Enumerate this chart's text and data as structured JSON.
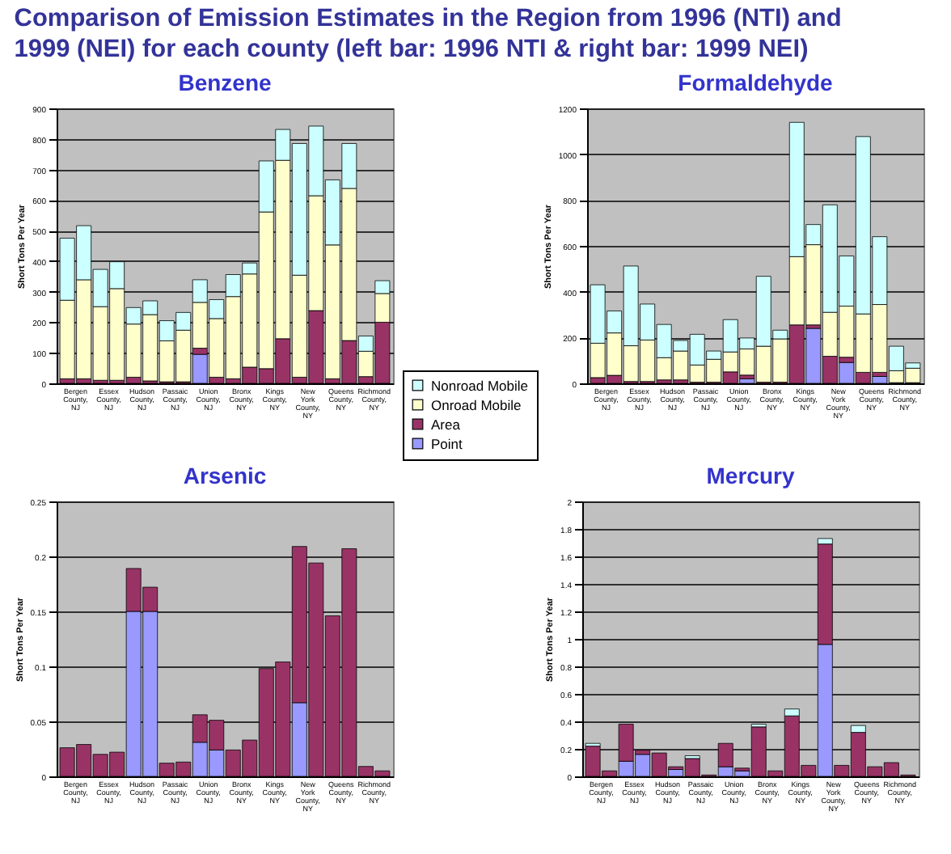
{
  "chart_data": [
    {
      "type": "bar",
      "stacked": true,
      "title": "Benzene",
      "ylabel": "Short Tons Per Year",
      "annotations": [
        "Comparison of Emission Estimates in the Region from 1996 (NTI) and 1999 (NEI) for each county (left bar: 1996 NTI  & right bar: 1999 NEI)"
      ],
      "legend": "bottom right",
      "grid": "y",
      "categories": [
        "Bergen County, NJ",
        null,
        "Essex County, NJ",
        null,
        "Hudson County, NJ",
        null,
        "Passaic County, NJ",
        null,
        "Union County, NJ",
        null,
        "Bronx County, NY",
        null,
        "Kings County, NY",
        null,
        "New York County, NY",
        null,
        "Queens County, NY",
        null,
        "Richmond County, NY",
        null
      ],
      "ylim": [
        0,
        900
      ],
      "yticks": [
        0,
        100,
        200,
        300,
        400,
        500,
        600,
        700,
        800,
        900
      ],
      "series": [
        {
          "name": "Point",
          "color": "#9999ff",
          "values": [
            null,
            null,
            null,
            null,
            null,
            null,
            null,
            null,
            95,
            null,
            null,
            null,
            null,
            null,
            null,
            null,
            null,
            null,
            null,
            null
          ]
        },
        {
          "name": "Area",
          "color": "#993366",
          "values": [
            15,
            15,
            10,
            10,
            20,
            8,
            5,
            5,
            20,
            20,
            15,
            53,
            48,
            146,
            20,
            238,
            15,
            140,
            22,
            200
          ]
        },
        {
          "name": "Onroad Mobile",
          "color": "#ffffcc",
          "values": [
            257,
            324,
            241,
            300,
            174,
            217,
            134,
            169,
            150,
            192,
            269,
            305,
            513,
            584,
            334,
            376,
            438,
            498,
            83,
            94
          ]
        },
        {
          "name": "Nonroad Mobile",
          "color": "#ccffff",
          "values": [
            203,
            177,
            122,
            88,
            54,
            45,
            66,
            58,
            74,
            62,
            72,
            36,
            167,
            101,
            431,
            228,
            213,
            147,
            50,
            42
          ]
        }
      ]
    },
    {
      "type": "bar",
      "stacked": true,
      "title": "Formaldehyde",
      "ylabel": "Short Tons Per Year",
      "grid": "y",
      "categories": [
        "Bergen County, NJ",
        null,
        "Essex County, NJ",
        null,
        "Hudson County, NJ",
        null,
        "Passaic County, NJ",
        null,
        "Union County, NJ",
        null,
        "Bronx County, NY",
        null,
        "Kings County, NY",
        null,
        "New York County, NY",
        null,
        "Queens County, NY",
        null,
        "Richmond County, NY",
        null
      ],
      "ylim": [
        0,
        1200
      ],
      "yticks": [
        0,
        200,
        400,
        600,
        800,
        1000,
        1200
      ],
      "series": [
        {
          "color": "#9999ff",
          "values": [
            null,
            null,
            null,
            null,
            null,
            null,
            null,
            null,
            null,
            20,
            null,
            null,
            null,
            240,
            null,
            91,
            null,
            30,
            null,
            null
          ]
        },
        {
          "color": "#993366",
          "values": [
            25,
            35,
            8,
            8,
            15,
            15,
            5,
            5,
            50,
            16,
            5,
            5,
            255,
            15,
            118,
            23,
            48,
            18,
            3,
            3
          ]
        },
        {
          "color": "#ffffcc",
          "values": [
            150,
            185,
            156,
            181,
            97,
            126,
            75,
            100,
            87,
            114,
            157,
            189,
            298,
            350,
            192,
            223,
            255,
            296,
            52,
            63
          ]
        },
        {
          "color": "#ccffff",
          "values": [
            255,
            96,
            348,
            157,
            145,
            46,
            134,
            36,
            141,
            48,
            305,
            38,
            586,
            88,
            469,
            219,
            774,
            296,
            107,
            23
          ]
        }
      ]
    },
    {
      "type": "bar",
      "stacked": true,
      "title": "Arsenic",
      "ylabel": "Short Tons Per Year",
      "grid": "y",
      "categories": [
        "Bergen County, NJ",
        null,
        "Essex County, NJ",
        null,
        "Hudson County, NJ",
        null,
        "Passaic County, NJ",
        null,
        "Union County, NJ",
        null,
        "Bronx County, NY",
        null,
        "Kings County, NY",
        null,
        "New York County, NY",
        null,
        "Queens County, NY",
        null,
        "Richmond County, NY",
        null
      ],
      "ylim": [
        0,
        0.25
      ],
      "yticks": [
        0,
        0.05,
        0.1,
        0.15,
        0.2,
        0.25
      ],
      "series": [
        {
          "color": "#9999ff",
          "values": [
            null,
            null,
            null,
            null,
            0.15,
            0.15,
            null,
            null,
            0.031,
            0.024,
            null,
            null,
            null,
            null,
            0.067,
            null,
            null,
            null,
            null,
            null
          ]
        },
        {
          "color": "#993366",
          "values": [
            0.026,
            0.029,
            0.02,
            0.022,
            0.039,
            0.022,
            0.012,
            0.013,
            0.025,
            0.027,
            0.024,
            0.033,
            0.098,
            0.104,
            0.142,
            0.194,
            0.146,
            0.207,
            0.009,
            0.005
          ]
        }
      ]
    },
    {
      "type": "bar",
      "stacked": true,
      "title": "Mercury",
      "ylabel": "Short Tons Per Year",
      "grid": "y",
      "categories": [
        "Bergen County, NJ",
        null,
        "Essex County, NJ",
        null,
        "Hudson County, NJ",
        null,
        "Passaic County, NJ",
        null,
        "Union County, NJ",
        null,
        "Bronx County, NY",
        null,
        "Kings County, NY",
        null,
        "New York County, NY",
        null,
        "Queens County, NY",
        null,
        "Richmond County, NY",
        null
      ],
      "ylim": [
        0,
        2
      ],
      "yticks": [
        0,
        0.2,
        0.4,
        0.6,
        0.8,
        1,
        1.2,
        1.4,
        1.6,
        1.8,
        2
      ],
      "series": [
        {
          "color": "#9999ff",
          "values": [
            null,
            null,
            0.11,
            0.16,
            null,
            0.05,
            null,
            null,
            0.07,
            0.04,
            null,
            null,
            null,
            null,
            0.96,
            null,
            null,
            null,
            null,
            null
          ]
        },
        {
          "color": "#993366",
          "values": [
            0.22,
            0.04,
            0.27,
            0.03,
            0.17,
            0.02,
            0.13,
            0.01,
            0.17,
            0.02,
            0.36,
            0.04,
            0.44,
            0.08,
            0.73,
            0.08,
            0.32,
            0.07,
            0.1,
            0.01
          ]
        },
        {
          "color": "#ccffff",
          "values": [
            0.02,
            null,
            null,
            null,
            null,
            null,
            0.02,
            null,
            null,
            null,
            0.02,
            null,
            0.05,
            null,
            0.04,
            null,
            0.05,
            null,
            null,
            null
          ]
        }
      ]
    }
  ]
}
